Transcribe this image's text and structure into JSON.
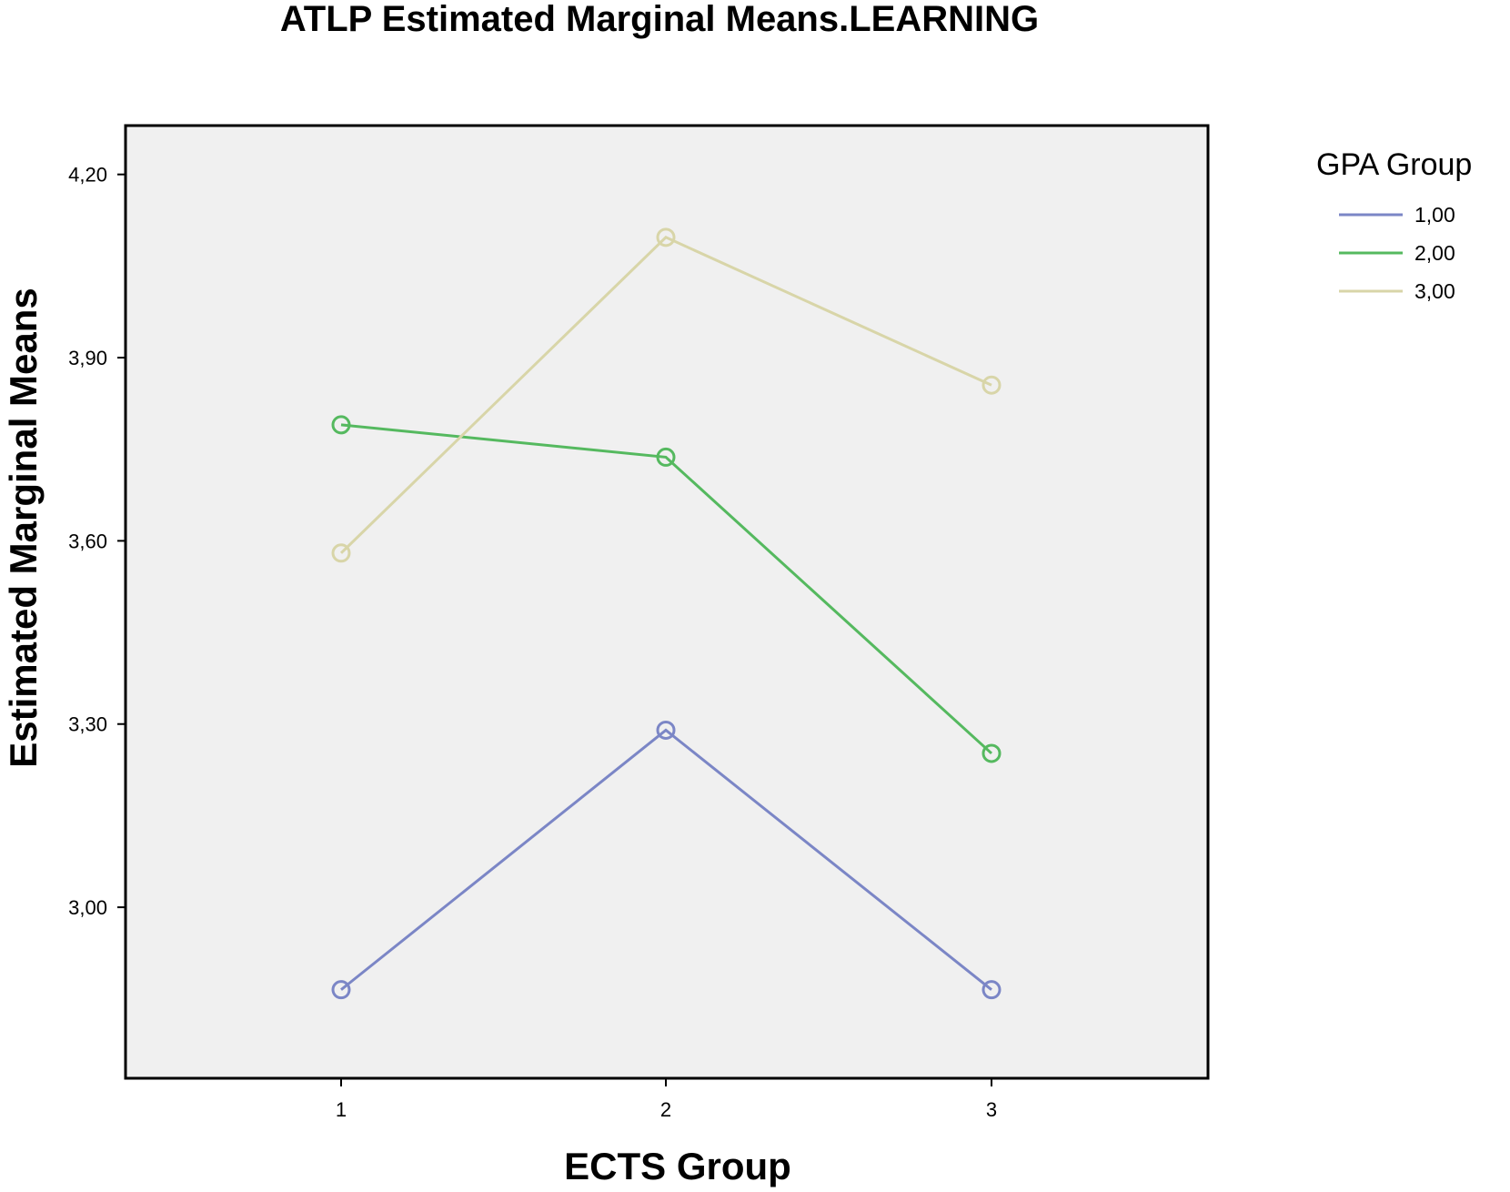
{
  "chart_data": {
    "type": "line",
    "title": "ATLP Estimated Marginal Means.LEARNING",
    "xlabel": "ECTS Group",
    "ylabel": "Estimated Marginal Means",
    "categories": [
      "1",
      "2",
      "3"
    ],
    "yticks": [
      "3,00",
      "3,30",
      "3,60",
      "3,90",
      "4,20"
    ],
    "ylim": [
      2.72,
      4.28
    ],
    "grid": false,
    "legend": {
      "title": "GPA Group",
      "position": "right"
    },
    "series": [
      {
        "name": "1,00",
        "color": "#7b86c6",
        "values": [
          2.865,
          3.29,
          2.865
        ]
      },
      {
        "name": "2,00",
        "color": "#55b95f",
        "values": [
          3.79,
          3.737,
          3.252
        ]
      },
      {
        "name": "3,00",
        "color": "#d8d5a8",
        "values": [
          3.58,
          4.097,
          3.855
        ]
      }
    ]
  }
}
